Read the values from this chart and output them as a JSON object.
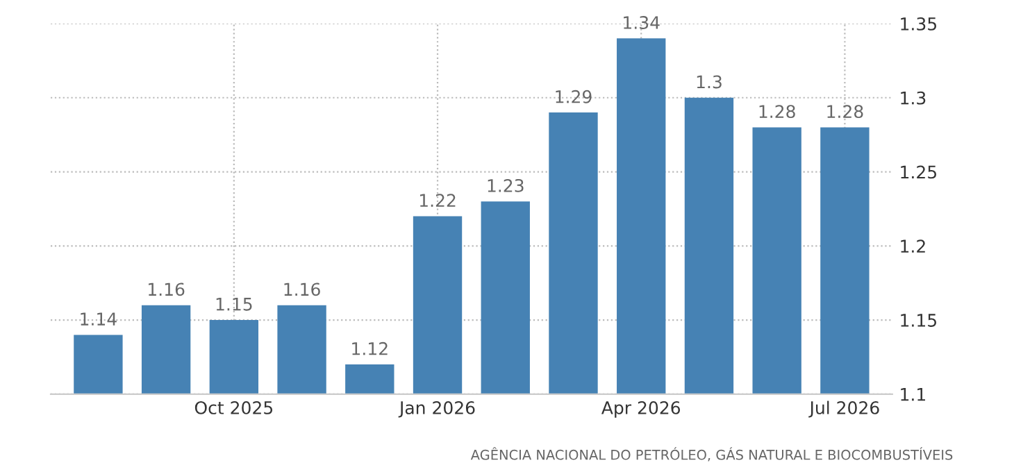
{
  "chart_data": {
    "type": "bar",
    "categories": [
      null,
      null,
      "Oct 2025",
      null,
      null,
      "Jan 2026",
      null,
      null,
      "Apr 2026",
      null,
      null,
      "Jul 2026"
    ],
    "values": [
      1.14,
      1.16,
      1.15,
      1.16,
      1.12,
      1.22,
      1.23,
      1.29,
      1.34,
      1.3,
      1.28,
      1.28
    ],
    "color": "#4682b4",
    "ylim": [
      1.1,
      1.35
    ],
    "yticks": [
      1.1,
      1.15,
      1.2,
      1.25,
      1.3,
      1.35
    ],
    "grid": true,
    "data_labels": true,
    "annotations": [
      "AGÊNCIA NACIONAL DO PETRÓLEO, GÁS NATURAL E BIOCOMBUSTÍVEIS"
    ]
  }
}
